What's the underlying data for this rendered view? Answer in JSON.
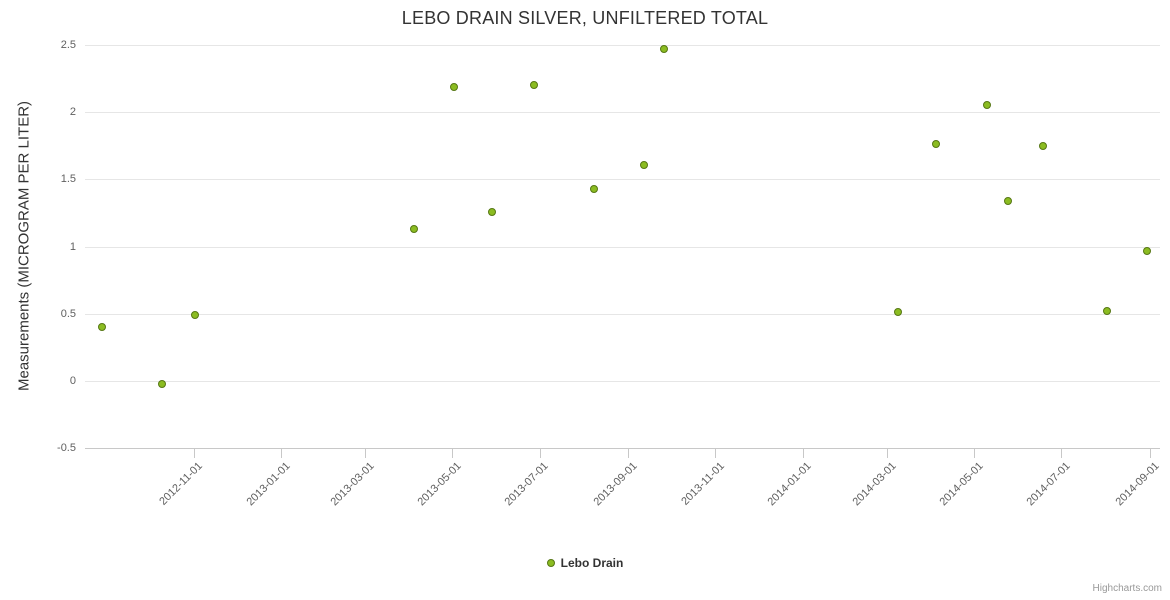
{
  "title": "LEBO DRAIN SILVER, UNFILTERED TOTAL",
  "y_axis_title": "Measurements (MICROGRAM PER LITER)",
  "legend": {
    "label": "Lebo Drain"
  },
  "credits": {
    "label": "Highcharts.com"
  },
  "colors": {
    "point_fill": "#8bbc21",
    "point_stroke": "#567714",
    "grid_line": "#e6e6e6",
    "axis_line": "#c8c8c8",
    "title_text": "#333333",
    "tick_label_text": "#606060"
  },
  "chart_data": {
    "type": "scatter",
    "title": "LEBO DRAIN SILVER, UNFILTERED TOTAL",
    "xlabel": "",
    "ylabel": "Measurements (MICROGRAM PER LITER)",
    "grid": "horizontal",
    "legend_position": "bottom-center",
    "x_range": [
      "2012-08-17",
      "2014-09-08"
    ],
    "y_range": [
      -0.5,
      2.5
    ],
    "y_ticks": [
      -0.5,
      0,
      0.5,
      1,
      1.5,
      2,
      2.5
    ],
    "x_ticks": [
      "2012-11-01",
      "2013-01-01",
      "2013-03-01",
      "2013-05-01",
      "2013-07-01",
      "2013-09-01",
      "2013-11-01",
      "2014-01-01",
      "2014-03-01",
      "2014-05-01",
      "2014-07-01",
      "2014-09-01"
    ],
    "series": [
      {
        "name": "Lebo Drain",
        "points": [
          {
            "x": "2012-08-29",
            "y": 0.4
          },
          {
            "x": "2012-10-10",
            "y": -0.02
          },
          {
            "x": "2012-11-02",
            "y": 0.49
          },
          {
            "x": "2013-04-04",
            "y": 1.13
          },
          {
            "x": "2013-05-02",
            "y": 2.19
          },
          {
            "x": "2013-05-29",
            "y": 1.26
          },
          {
            "x": "2013-06-27",
            "y": 2.2
          },
          {
            "x": "2013-08-08",
            "y": 1.43
          },
          {
            "x": "2013-09-12",
            "y": 1.61
          },
          {
            "x": "2013-09-26",
            "y": 2.47
          },
          {
            "x": "2014-03-09",
            "y": 0.51
          },
          {
            "x": "2014-04-04",
            "y": 1.76
          },
          {
            "x": "2014-05-10",
            "y": 2.05
          },
          {
            "x": "2014-05-25",
            "y": 1.34
          },
          {
            "x": "2014-06-18",
            "y": 1.75
          },
          {
            "x": "2014-08-02",
            "y": 0.52
          },
          {
            "x": "2014-08-30",
            "y": 0.97
          }
        ]
      }
    ]
  }
}
